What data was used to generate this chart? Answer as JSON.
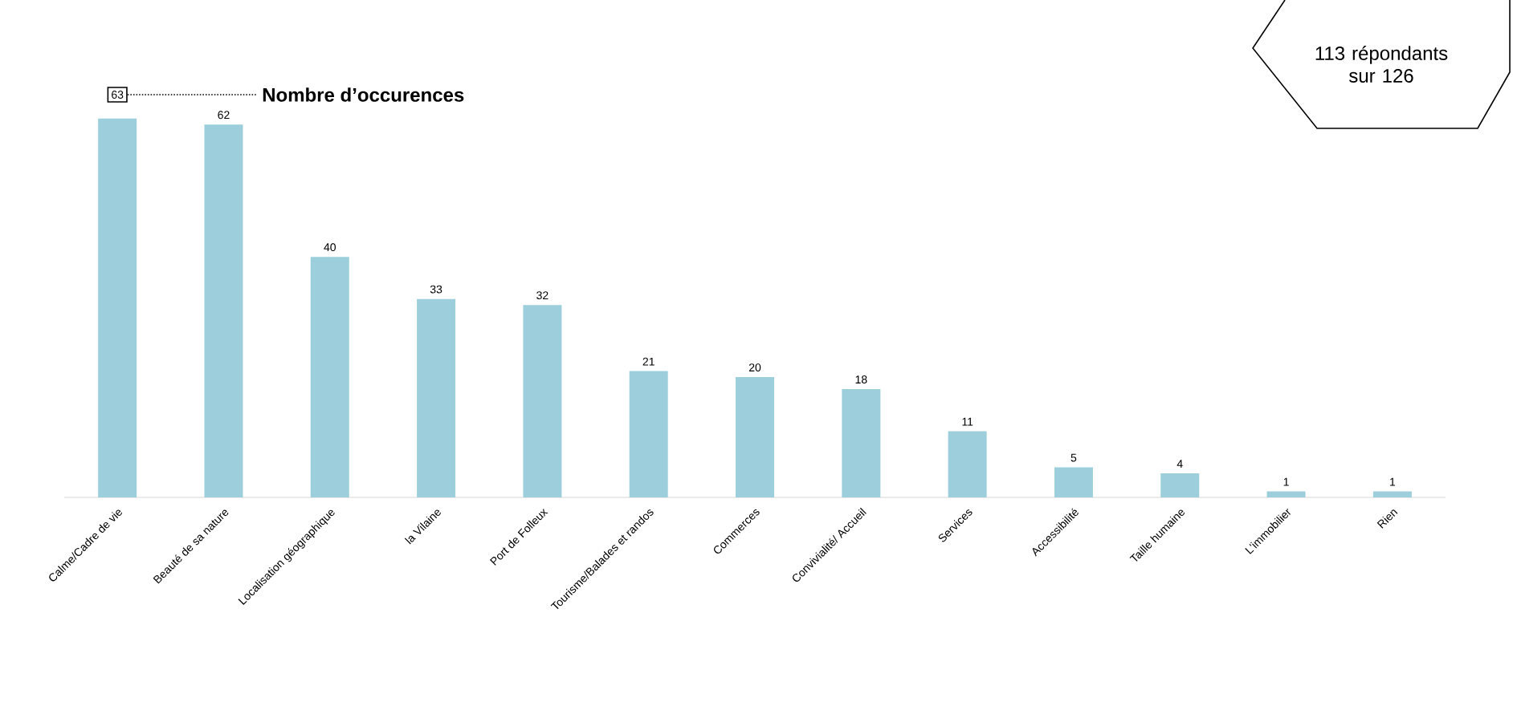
{
  "chart_data": {
    "type": "bar",
    "categories": [
      "Calme/Cadre de vie",
      "Beauté de sa nature",
      "Localisation géographique",
      "la Vilaine",
      "Port de Folleux",
      "Tourisme/Balades et randos",
      "Commerces",
      "Convivialité/ Accueil",
      "Services",
      "Accessibilité",
      "Taille humaine",
      "L'immobilier",
      "Rien"
    ],
    "values": [
      63,
      62,
      40,
      33,
      32,
      21,
      20,
      18,
      11,
      5,
      4,
      1,
      1
    ],
    "color": "#9ccfdb",
    "data_labels": true,
    "tick_labels": "x",
    "annotations": [
      "Nombre d’occurences",
      "113 répondants sur 126"
    ]
  }
}
